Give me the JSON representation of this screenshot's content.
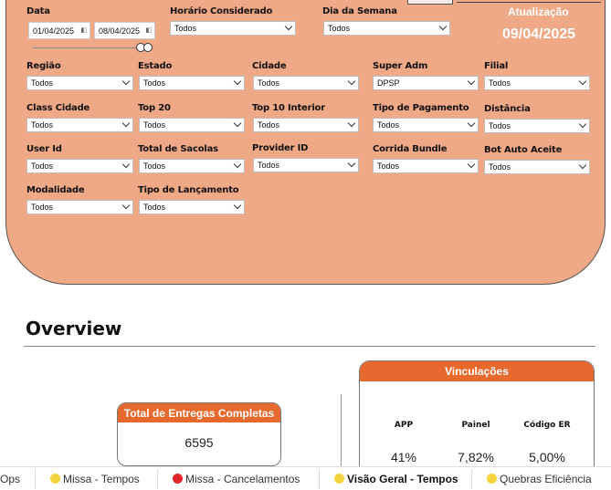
{
  "colors": {
    "panel": "#f0a986",
    "accent": "#e8692e",
    "yellow_dot": "#f5d33a",
    "red_dot": "#e0262a"
  },
  "date_filter": {
    "label": "Data",
    "start": "01/04/2025",
    "end": "08/04/2025"
  },
  "horario": {
    "label": "Horário Considerado",
    "value": "Todos"
  },
  "dia_semana": {
    "label": "Dia da Semana",
    "value": "Todos"
  },
  "atualizacao": {
    "label": "Atualização",
    "date": "09/04/2025"
  },
  "filters": {
    "regiao": {
      "label": "Região",
      "value": "Todos"
    },
    "estado": {
      "label": "Estado",
      "value": "Todos"
    },
    "cidade": {
      "label": "Cidade",
      "value": "Todos"
    },
    "super_adm": {
      "label": "Super Adm",
      "value": "DPSP"
    },
    "filial": {
      "label": "Filial",
      "value": "Todos"
    },
    "class_cidade": {
      "label": "Class Cidade",
      "value": "Todos"
    },
    "top20": {
      "label": "Top 20",
      "value": "Todos"
    },
    "top10_interior": {
      "label": "Top 10 Interior",
      "value": "Todos"
    },
    "tipo_pagamento": {
      "label": "Tipo de Pagamento",
      "value": "Todos"
    },
    "distancia": {
      "label": "Distância",
      "value": "Todos"
    },
    "user_id": {
      "label": "User Id",
      "value": "Todos"
    },
    "total_sacolas": {
      "label": "Total de Sacolas",
      "value": "Todos"
    },
    "provider_id": {
      "label": "Provider ID",
      "value": "Todos"
    },
    "corrida_bundle": {
      "label": "Corrida Bundle",
      "value": "Todos"
    },
    "bot_auto_aceite": {
      "label": "Bot Auto Aceite",
      "value": "Todos"
    },
    "modalidade": {
      "label": "Modalidade",
      "value": "Todos"
    },
    "tipo_lancamento": {
      "label": "Tipo de Lançamento",
      "value": "Todos"
    }
  },
  "overview": {
    "title": "Overview",
    "entregas": {
      "title": "Total de Entregas Completas",
      "value": "6595"
    },
    "vinculacoes": {
      "title": "Vinculações",
      "columns": [
        {
          "label": "APP",
          "value": "41%"
        },
        {
          "label": "Painel",
          "value": "7,82%"
        },
        {
          "label": "Código ER",
          "value": "5,00%"
        }
      ]
    }
  },
  "tabs": [
    {
      "label": "Ops",
      "dot": "none"
    },
    {
      "label": "Missa - Tempos",
      "dot": "yellow"
    },
    {
      "label": "Missa - Cancelamentos",
      "dot": "red"
    },
    {
      "label": "Visão Geral - Tempos",
      "dot": "yellow",
      "active": true
    },
    {
      "label": "Quebras Eficiência",
      "dot": "yellow"
    }
  ]
}
